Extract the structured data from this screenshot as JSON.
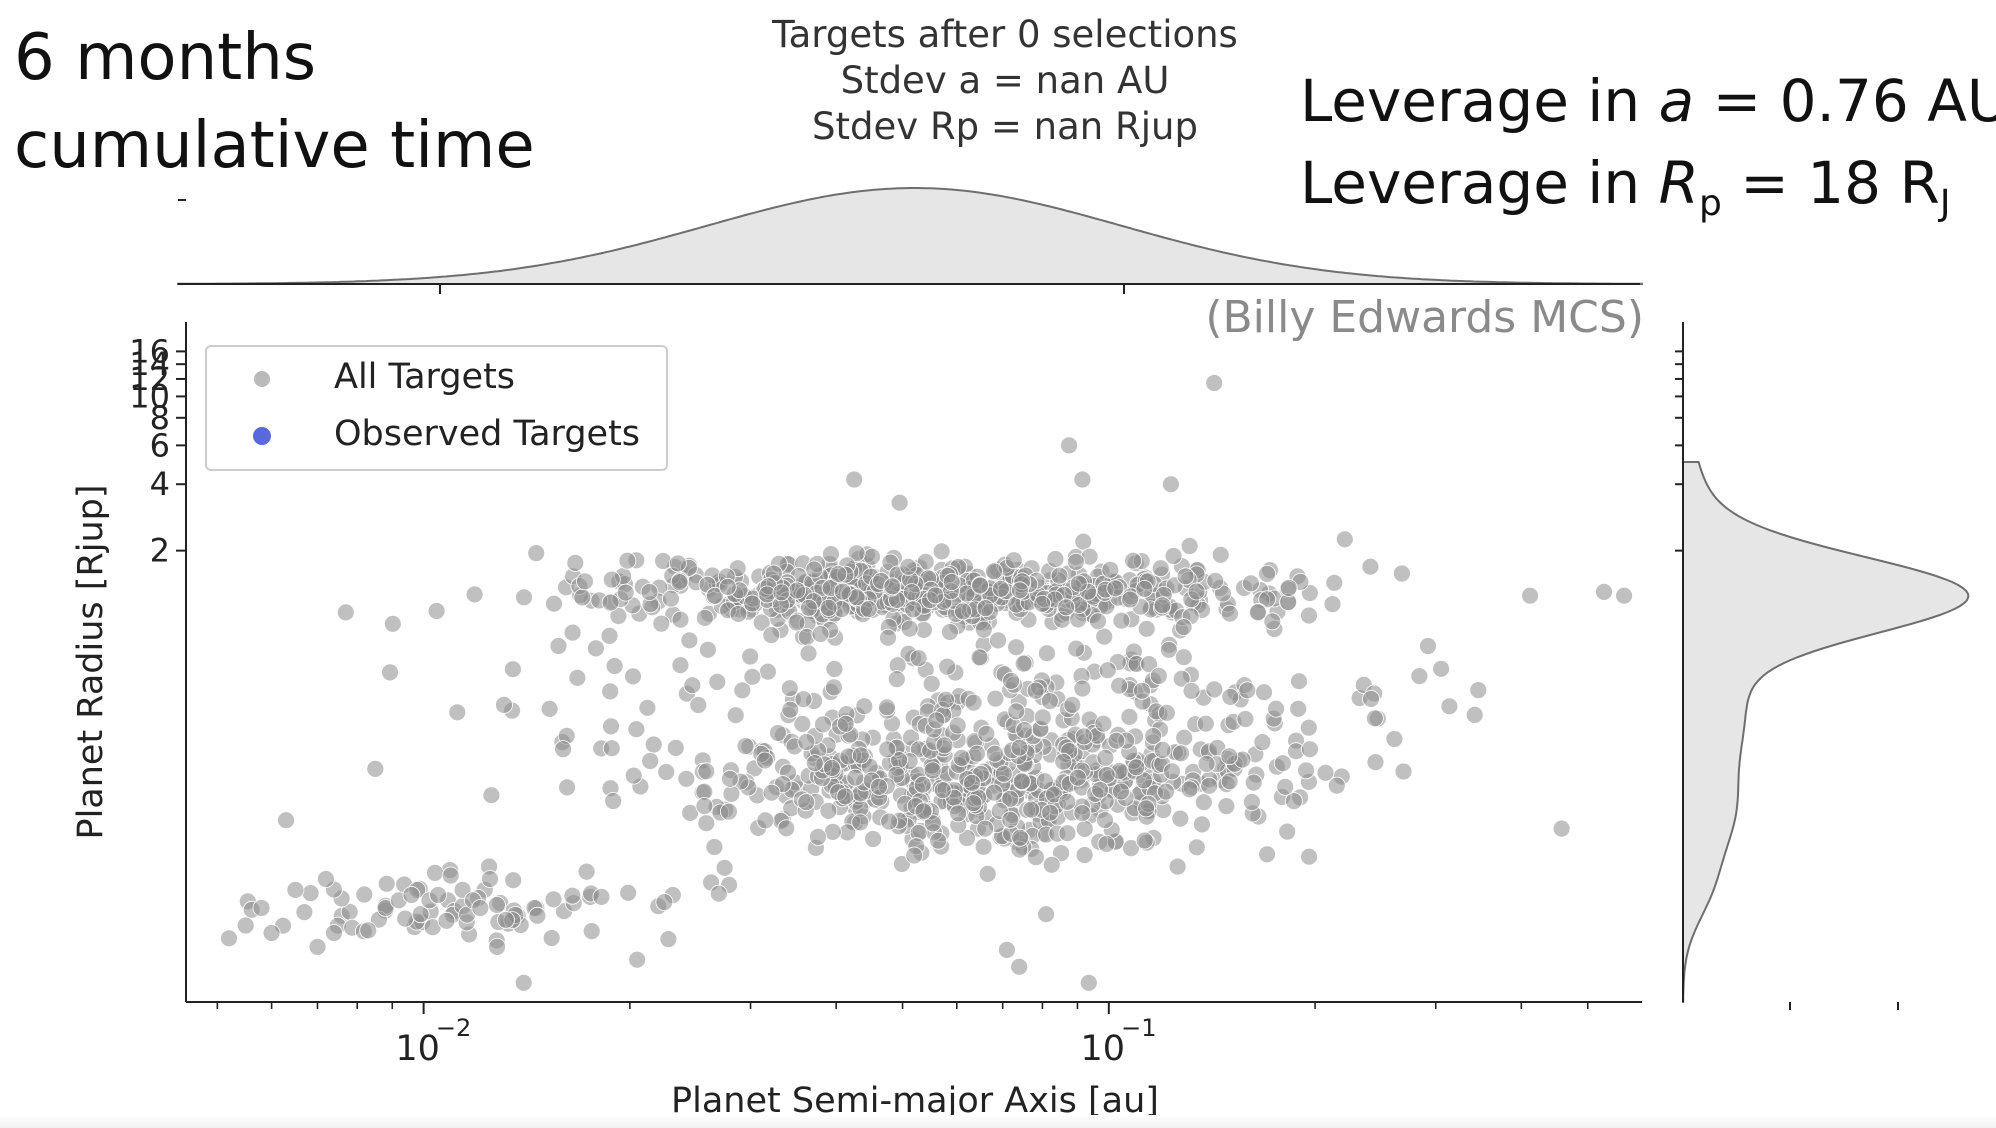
{
  "overlay": {
    "title_line1": "6 months",
    "title_line2": "cumulative time",
    "leverage_a_prefix": "Leverage in ",
    "leverage_a_symbol": "a",
    "leverage_a_value": " = 0.76 AU",
    "leverage_rp_prefix": "Leverage in ",
    "leverage_rp_symbol": "R",
    "leverage_rp_sub": "p",
    "leverage_rp_value": " = 18 R",
    "leverage_rp_unit_sub": "J",
    "credit": "(Billy Edwards MCS)"
  },
  "colors": {
    "all_targets": "#8c8c8c",
    "observed_targets": "#3b4fd8",
    "kde_fill": "#e6e6e6",
    "kde_line": "#6e6e6e",
    "axis": "#222222"
  },
  "chart_data": {
    "type": "scatter",
    "title_lines": [
      "Targets after 0 selections",
      "Stdev a = nan AU",
      "Stdev Rp = nan Rjup"
    ],
    "xlabel": "Planet Semi-major Axis [au]",
    "ylabel": "Planet Radius [Rjup]",
    "xscale": "log",
    "yscale": "log",
    "xlim": [
      0.0045,
      0.6
    ],
    "ylim": [
      0.018,
      20
    ],
    "x_ticks": [
      0.01,
      0.1
    ],
    "x_tick_labels": [
      "10",
      "10"
    ],
    "x_tick_exponents": [
      "−2",
      "−1"
    ],
    "y_ticks": [
      2,
      4,
      6,
      8,
      10,
      12,
      14,
      16
    ],
    "y_tick_labels": [
      "2",
      "4",
      "6",
      "8",
      "10",
      "12",
      "14",
      "16"
    ],
    "legend": {
      "position": "top-left",
      "entries": [
        "All Targets",
        "Observed Targets"
      ]
    },
    "grid": false,
    "series": [
      {
        "name": "All Targets",
        "color": "#8c8c8c",
        "n_points": 1500,
        "points": [
          [
            0.0052,
            0.035
          ],
          [
            0.0055,
            0.04
          ],
          [
            0.0058,
            0.048
          ],
          [
            0.006,
            0.037
          ],
          [
            0.0063,
            0.12
          ],
          [
            0.0065,
            0.058
          ],
          [
            0.0067,
            0.046
          ],
          [
            0.007,
            0.032
          ],
          [
            0.0072,
            0.065
          ],
          [
            0.0074,
            0.037
          ],
          [
            0.0077,
            1.05
          ],
          [
            0.0083,
            0.038
          ],
          [
            0.0085,
            0.205
          ],
          [
            0.0088,
            0.048
          ],
          [
            0.0092,
            0.052
          ],
          [
            0.0094,
            0.043
          ],
          [
            0.0096,
            0.055
          ],
          [
            0.0099,
            0.045
          ],
          [
            0.0102,
            0.052
          ],
          [
            0.0105,
            0.055
          ],
          [
            0.0108,
            0.042
          ],
          [
            0.0112,
            0.37
          ],
          [
            0.0114,
            0.058
          ],
          [
            0.0118,
            0.052
          ],
          [
            0.0121,
            0.048
          ],
          [
            0.0125,
            0.065
          ],
          [
            0.0128,
            0.032
          ],
          [
            0.0131,
            0.4
          ],
          [
            0.0135,
            0.58
          ],
          [
            0.014,
            0.022
          ],
          [
            0.0146,
            1.95
          ],
          [
            0.0155,
            1.15
          ],
          [
            0.0165,
            0.85
          ],
          [
            0.0172,
            1.45
          ],
          [
            0.019,
            0.6
          ],
          [
            0.0205,
            0.028
          ],
          [
            0.0235,
            1.75
          ],
          [
            0.0275,
            0.073
          ],
          [
            0.0295,
            0.26
          ],
          [
            0.0322,
            0.16
          ],
          [
            0.0365,
            1.1
          ],
          [
            0.0397,
            0.48
          ],
          [
            0.0425,
            4.2
          ],
          [
            0.0462,
            0.17
          ],
          [
            0.0495,
            3.3
          ],
          [
            0.052,
            0.083
          ],
          [
            0.056,
            0.34
          ],
          [
            0.061,
            0.23
          ],
          [
            0.066,
            0.11
          ],
          [
            0.071,
            0.031
          ],
          [
            0.074,
            0.026
          ],
          [
            0.081,
            0.045
          ],
          [
            0.0875,
            6.0
          ],
          [
            0.0915,
            4.2
          ],
          [
            0.0935,
            0.022
          ],
          [
            0.1022,
            1.35
          ],
          [
            0.1085,
            1.8
          ],
          [
            0.1232,
            4.0
          ],
          [
            0.1312,
            2.1
          ],
          [
            0.1425,
            11.5
          ],
          [
            0.165,
            1.05
          ],
          [
            0.196,
            0.082
          ],
          [
            0.221,
            2.25
          ],
          [
            0.245,
            0.22
          ],
          [
            0.284,
            0.54
          ],
          [
            0.342,
            0.36
          ],
          [
            0.412,
            1.25
          ],
          [
            0.458,
            0.11
          ],
          [
            0.528,
            1.3
          ],
          [
            0.565,
            1.25
          ]
        ]
      },
      {
        "name": "Observed Targets",
        "color": "#3b4fd8",
        "points": []
      }
    ],
    "marginal_x_kde": {
      "peak_x": 0.052,
      "log10_sigma": 0.31
    },
    "marginal_y_kde": {
      "peak_y": 1.25
    }
  }
}
